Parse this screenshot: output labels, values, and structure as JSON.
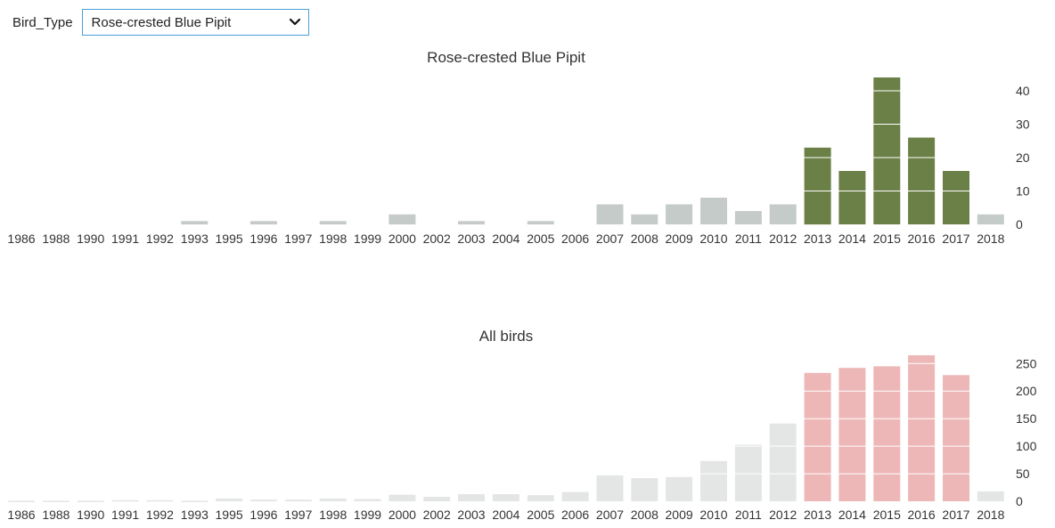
{
  "control": {
    "label": "Bird_Type",
    "selected": "Rose-crested Blue Pipit",
    "icon": "chevron-down-icon"
  },
  "chart_data": [
    {
      "type": "bar",
      "title": "Rose-crested Blue Pipit",
      "xlabel": "",
      "ylabel": "",
      "categories": [
        "1986",
        "1988",
        "1990",
        "1991",
        "1992",
        "1993",
        "1995",
        "1996",
        "1997",
        "1998",
        "1999",
        "2000",
        "2002",
        "2003",
        "2004",
        "2005",
        "2006",
        "2007",
        "2008",
        "2009",
        "2010",
        "2011",
        "2012",
        "2013",
        "2014",
        "2015",
        "2016",
        "2017",
        "2018"
      ],
      "values": [
        0,
        0,
        0,
        0,
        0,
        1,
        0,
        1,
        0,
        1,
        0,
        3,
        0,
        1,
        0,
        1,
        0,
        6,
        3,
        6,
        8,
        4,
        6,
        23,
        16,
        44,
        26,
        16,
        3
      ],
      "yticks": [
        0,
        10,
        20,
        30,
        40
      ],
      "ylim": [
        0,
        44
      ],
      "highlight_range": [
        "2013",
        "2017"
      ],
      "colors": {
        "base": "#c5cbc8",
        "highlight": "#6b8046"
      },
      "grid": false
    },
    {
      "type": "bar",
      "title": "All birds",
      "xlabel": "",
      "ylabel": "",
      "categories": [
        "1986",
        "1988",
        "1990",
        "1991",
        "1992",
        "1993",
        "1995",
        "1996",
        "1997",
        "1998",
        "1999",
        "2000",
        "2002",
        "2003",
        "2004",
        "2005",
        "2006",
        "2007",
        "2008",
        "2009",
        "2010",
        "2011",
        "2012",
        "2013",
        "2014",
        "2015",
        "2016",
        "2017",
        "2018"
      ],
      "values": [
        1,
        1,
        1,
        2,
        2,
        1,
        5,
        3,
        3,
        5,
        4,
        12,
        8,
        13,
        13,
        11,
        17,
        47,
        42,
        44,
        73,
        103,
        141,
        233,
        242,
        245,
        265,
        229,
        18
      ],
      "yticks": [
        0,
        50,
        100,
        150,
        200,
        250
      ],
      "ylim": [
        0,
        265
      ],
      "highlight_range": [
        "2013",
        "2017"
      ],
      "colors": {
        "base": "#e3e6e5",
        "highlight": "#eeb7b7"
      },
      "grid": false
    }
  ]
}
